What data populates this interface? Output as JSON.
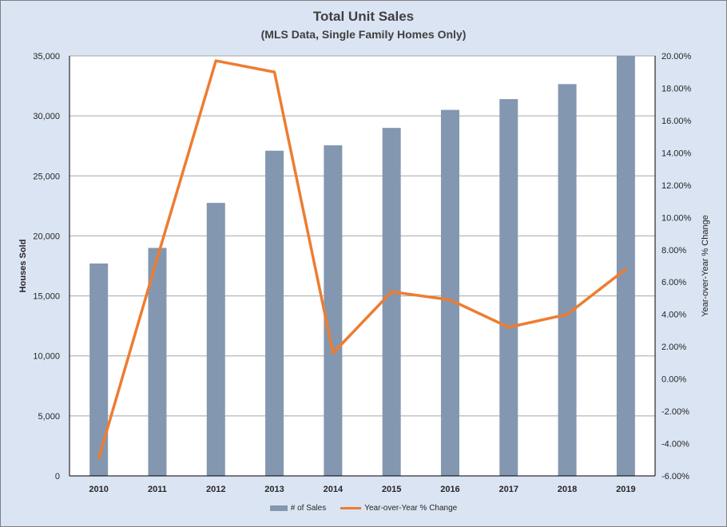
{
  "chart_data": {
    "type": "bar",
    "title": "Total Unit Sales",
    "subtitle": "(MLS Data, Single Family Homes Only)",
    "categories": [
      "2010",
      "2011",
      "2012",
      "2013",
      "2014",
      "2015",
      "2016",
      "2017",
      "2018",
      "2019"
    ],
    "series": [
      {
        "name": "# of Sales",
        "type": "bar",
        "axis": "left",
        "color": "#8497b0",
        "values": [
          17700,
          19000,
          22750,
          27100,
          27550,
          29000,
          30500,
          31400,
          32650,
          35000
        ]
      },
      {
        "name": "Year-over-Year % Change",
        "type": "line",
        "axis": "right",
        "color": "#ed7d31",
        "values": [
          -4.9,
          7.5,
          19.7,
          19.0,
          1.6,
          5.4,
          4.9,
          3.2,
          4.0,
          6.8
        ]
      }
    ],
    "ylabel": "Houses Sold",
    "ylim": [
      0,
      35000
    ],
    "yticks": [
      "0",
      "5,000",
      "10,000",
      "15,000",
      "20,000",
      "25,000",
      "30,000",
      "35,000"
    ],
    "y2label": "Year-over-Year % Change",
    "y2lim": [
      -6,
      20
    ],
    "y2ticks": [
      "-6.00%",
      "-4.00%",
      "-2.00%",
      "0.00%",
      "2.00%",
      "4.00%",
      "6.00%",
      "8.00%",
      "10.00%",
      "12.00%",
      "14.00%",
      "16.00%",
      "18.00%",
      "20.00%"
    ],
    "grid": true,
    "legend_position": "bottom"
  }
}
